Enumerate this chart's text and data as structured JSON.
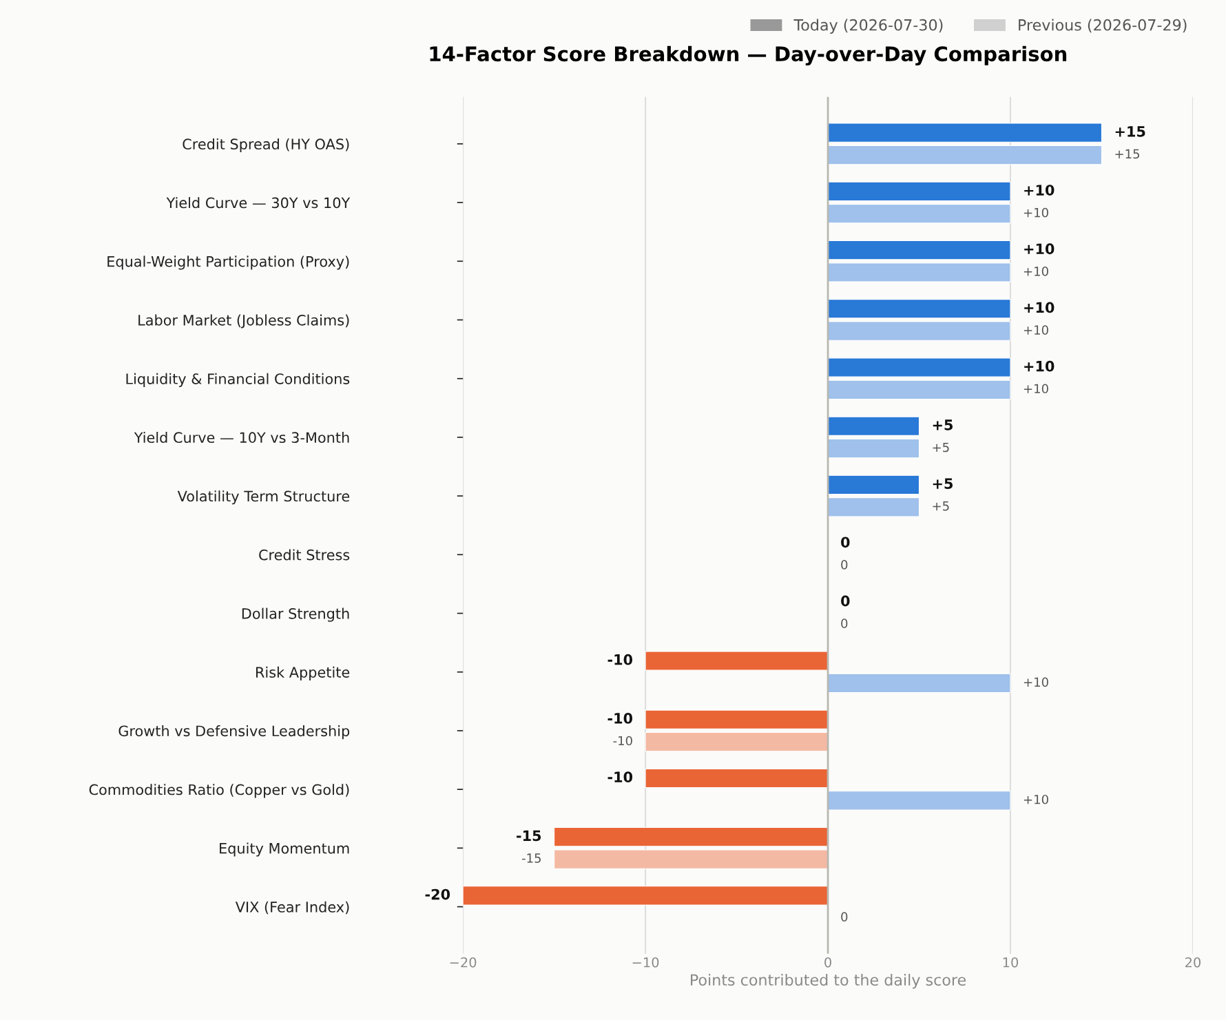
{
  "chart_data": {
    "type": "bar",
    "orientation": "horizontal",
    "title": "14-Factor Score Breakdown — Day-over-Day Comparison",
    "xlabel": "Points contributed to the daily score",
    "categories": [
      "Credit Spread (HY OAS)",
      "Yield Curve — 30Y vs 10Y",
      "Equal-Weight Participation (Proxy)",
      "Labor Market (Jobless Claims)",
      "Liquidity & Financial Conditions",
      "Yield Curve — 10Y vs 3-Month",
      "Volatility Term Structure",
      "Credit Stress",
      "Dollar Strength",
      "Risk Appetite",
      "Growth vs Defensive Leadership",
      "Commodities Ratio (Copper vs Gold)",
      "Equity Momentum",
      "VIX (Fear Index)"
    ],
    "series": [
      {
        "name": "Today (2026-07-30)",
        "color": "#999999",
        "values": [
          15,
          10,
          10,
          10,
          10,
          5,
          5,
          0,
          0,
          -10,
          -10,
          -10,
          -15,
          -20
        ],
        "colors": [
          "#2979d6",
          "#2979d6",
          "#2979d6",
          "#2979d6",
          "#2979d6",
          "#2979d6",
          "#2979d6",
          "#ffffff",
          "#ffffff",
          "#ea6535",
          "#ea6535",
          "#ea6535",
          "#ea6535",
          "#ea6535"
        ],
        "value_labels": [
          "+15",
          "+10",
          "+10",
          "+10",
          "+10",
          "+5",
          "+5",
          "0",
          "0",
          "-10",
          "-10",
          "-10",
          "-15",
          "-20"
        ]
      },
      {
        "name": "Previous (2026-07-29)",
        "color": "#d0d0d0",
        "values": [
          15,
          10,
          10,
          10,
          10,
          5,
          5,
          0,
          0,
          10,
          -10,
          10,
          -15,
          0
        ],
        "colors": [
          "#9fc1eb",
          "#9fc1eb",
          "#9fc1eb",
          "#9fc1eb",
          "#9fc1eb",
          "#9fc1eb",
          "#9fc1eb",
          "#ffffff",
          "#ffffff",
          "#9fc1eb",
          "#f4b9a3",
          "#9fc1eb",
          "#f4b9a3",
          "#ffffff"
        ],
        "value_labels": [
          "+15",
          "+10",
          "+10",
          "+10",
          "+10",
          "+5",
          "+5",
          "0",
          "0",
          "+10",
          "-10",
          "+10",
          "-15",
          "0"
        ]
      }
    ],
    "xlim": [
      -20,
      20
    ],
    "xticks": [
      -20,
      -10,
      0,
      10,
      20
    ],
    "grid": "x",
    "legend": "top right",
    "ref_lines": [
      {
        "axis": "x",
        "value": 0,
        "color": "#b8b8b0"
      }
    ]
  }
}
